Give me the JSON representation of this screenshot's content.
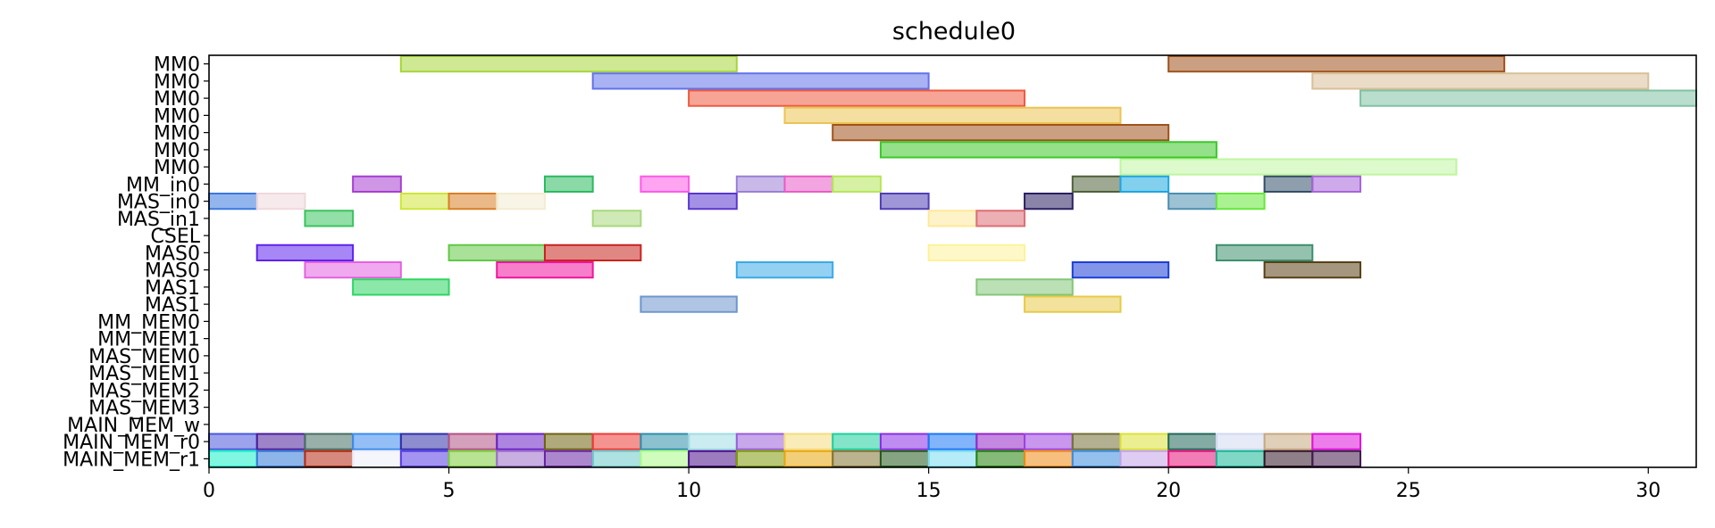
{
  "chart_data": {
    "type": "gantt",
    "title": "schedule0",
    "xlabel": "",
    "ylabel": "",
    "xlim": [
      0,
      31
    ],
    "xticks": [
      0,
      5,
      10,
      15,
      20,
      25,
      30
    ],
    "grid": false,
    "rows": [
      "MM0",
      "MM0",
      "MM0",
      "MM0",
      "MM0",
      "MM0",
      "MM0",
      "MM_in0",
      "MAS_in0",
      "MAS_in1",
      "CSEL",
      "MAS0",
      "MAS0",
      "MAS1",
      "MAS1",
      "MM_MEM0",
      "MM_MEM1",
      "MAS_MEM0",
      "MAS_MEM1",
      "MAS_MEM2",
      "MAS_MEM3",
      "MAIN_MEM_w",
      "MAIN_MEM_r0",
      "MAIN_MEM_r1"
    ],
    "tasks": [
      {
        "row": 0,
        "start": 4,
        "end": 11,
        "color": "#a5d63a"
      },
      {
        "row": 0,
        "start": 20,
        "end": 27,
        "color": "#a0521b"
      },
      {
        "row": 1,
        "start": 8,
        "end": 15,
        "color": "#6272ea"
      },
      {
        "row": 1,
        "start": 23,
        "end": 30,
        "color": "#d8bf98"
      },
      {
        "row": 2,
        "start": 10,
        "end": 17,
        "color": "#ee5a3f"
      },
      {
        "row": 2,
        "start": 24,
        "end": 31,
        "color": "#80c2a4"
      },
      {
        "row": 3,
        "start": 12,
        "end": 19,
        "color": "#ebc453"
      },
      {
        "row": 4,
        "start": 13,
        "end": 20,
        "color": "#a0521b"
      },
      {
        "row": 5,
        "start": 14,
        "end": 21,
        "color": "#3cc82a"
      },
      {
        "row": 6,
        "start": 19,
        "end": 26,
        "color": "#c0f5a0"
      },
      {
        "row": 7,
        "start": 3,
        "end": 4,
        "color": "#a63fcf"
      },
      {
        "row": 7,
        "start": 7,
        "end": 8,
        "color": "#2bba5e"
      },
      {
        "row": 7,
        "start": 9,
        "end": 10,
        "color": "#ff5ae6"
      },
      {
        "row": 7,
        "start": 11,
        "end": 12,
        "color": "#9a7fd6"
      },
      {
        "row": 7,
        "start": 12,
        "end": 13,
        "color": "#e85bc7"
      },
      {
        "row": 7,
        "start": 13,
        "end": 14,
        "color": "#b5e65a"
      },
      {
        "row": 7,
        "start": 18,
        "end": 19,
        "color": "#4f6138"
      },
      {
        "row": 7,
        "start": 19,
        "end": 20,
        "color": "#1ca7e0"
      },
      {
        "row": 7,
        "start": 22,
        "end": 23,
        "color": "#324f68"
      },
      {
        "row": 7,
        "start": 23,
        "end": 24,
        "color": "#a764d8"
      },
      {
        "row": 8,
        "start": 0,
        "end": 1,
        "color": "#3a78e0"
      },
      {
        "row": 8,
        "start": 1,
        "end": 2,
        "color": "#f0d8dc"
      },
      {
        "row": 8,
        "start": 4,
        "end": 5,
        "color": "#cfe53a"
      },
      {
        "row": 8,
        "start": 5,
        "end": 6,
        "color": "#d87f25"
      },
      {
        "row": 8,
        "start": 6,
        "end": 7,
        "color": "#f3ecd2"
      },
      {
        "row": 8,
        "start": 10,
        "end": 11,
        "color": "#5a37cf"
      },
      {
        "row": 8,
        "start": 14,
        "end": 15,
        "color": "#4f3fb5"
      },
      {
        "row": 8,
        "start": 17,
        "end": 18,
        "color": "#2a1f62"
      },
      {
        "row": 8,
        "start": 20,
        "end": 21,
        "color": "#4b8fb0"
      },
      {
        "row": 8,
        "start": 21,
        "end": 22,
        "color": "#66e83a"
      },
      {
        "row": 9,
        "start": 2,
        "end": 3,
        "color": "#38c45e"
      },
      {
        "row": 9,
        "start": 8,
        "end": 9,
        "color": "#a8d87c"
      },
      {
        "row": 9,
        "start": 15,
        "end": 16,
        "color": "#fde89a"
      },
      {
        "row": 9,
        "start": 16,
        "end": 17,
        "color": "#dc6e76"
      },
      {
        "row": 11,
        "start": 1,
        "end": 3,
        "color": "#5f22ec"
      },
      {
        "row": 11,
        "start": 5,
        "end": 7,
        "color": "#62c845"
      },
      {
        "row": 11,
        "start": 7,
        "end": 9,
        "color": "#c8241d"
      },
      {
        "row": 11,
        "start": 15,
        "end": 17,
        "color": "#fdf29b"
      },
      {
        "row": 11,
        "start": 21,
        "end": 23,
        "color": "#3c8f6e"
      },
      {
        "row": 12,
        "start": 2,
        "end": 4,
        "color": "#e462e2"
      },
      {
        "row": 12,
        "start": 6,
        "end": 8,
        "color": "#f0149e"
      },
      {
        "row": 12,
        "start": 11,
        "end": 13,
        "color": "#3aaae6"
      },
      {
        "row": 12,
        "start": 18,
        "end": 20,
        "color": "#1c3ed6"
      },
      {
        "row": 12,
        "start": 22,
        "end": 24,
        "color": "#594016"
      },
      {
        "row": 13,
        "start": 3,
        "end": 5,
        "color": "#2dd660"
      },
      {
        "row": 13,
        "start": 16,
        "end": 18,
        "color": "#84c678"
      },
      {
        "row": 14,
        "start": 9,
        "end": 11,
        "color": "#6e96cc"
      },
      {
        "row": 14,
        "start": 17,
        "end": 19,
        "color": "#e8ca48"
      },
      {
        "row": 22,
        "start": 0,
        "end": 1,
        "color": "#4a58dc"
      },
      {
        "row": 22,
        "start": 1,
        "end": 2,
        "color": "#4c1d9a"
      },
      {
        "row": 22,
        "start": 2,
        "end": 3,
        "color": "#466e64"
      },
      {
        "row": 22,
        "start": 3,
        "end": 4,
        "color": "#3d8bee"
      },
      {
        "row": 22,
        "start": 4,
        "end": 5,
        "color": "#3030a8"
      },
      {
        "row": 22,
        "start": 5,
        "end": 6,
        "color": "#b05284"
      },
      {
        "row": 22,
        "start": 6,
        "end": 7,
        "color": "#6a20c6"
      },
      {
        "row": 22,
        "start": 7,
        "end": 8,
        "color": "#6f6210"
      },
      {
        "row": 22,
        "start": 8,
        "end": 9,
        "color": "#ec3a36"
      },
      {
        "row": 22,
        "start": 9,
        "end": 10,
        "color": "#2e8eaa"
      },
      {
        "row": 22,
        "start": 10,
        "end": 11,
        "color": "#a0dce4"
      },
      {
        "row": 22,
        "start": 11,
        "end": 12,
        "color": "#9a5ed8"
      },
      {
        "row": 22,
        "start": 12,
        "end": 13,
        "color": "#f5dc7e"
      },
      {
        "row": 22,
        "start": 13,
        "end": 14,
        "color": "#1cd09e"
      },
      {
        "row": 22,
        "start": 14,
        "end": 15,
        "color": "#8a2ee6"
      },
      {
        "row": 22,
        "start": 15,
        "end": 16,
        "color": "#1a76f6"
      },
      {
        "row": 22,
        "start": 16,
        "end": 17,
        "color": "#9426c8"
      },
      {
        "row": 22,
        "start": 17,
        "end": 18,
        "color": "#9c42e0"
      },
      {
        "row": 22,
        "start": 18,
        "end": 19,
        "color": "#737036"
      },
      {
        "row": 22,
        "start": 19,
        "end": 20,
        "color": "#dce236"
      },
      {
        "row": 22,
        "start": 20,
        "end": 21,
        "color": "#20685a"
      },
      {
        "row": 22,
        "start": 21,
        "end": 22,
        "color": "#d2daf0"
      },
      {
        "row": 22,
        "start": 22,
        "end": 23,
        "color": "#c6a880"
      },
      {
        "row": 22,
        "start": 23,
        "end": 24,
        "color": "#de12da"
      },
      {
        "row": 23,
        "start": 0,
        "end": 1,
        "color": "#17f0c8"
      },
      {
        "row": 23,
        "start": 1,
        "end": 2,
        "color": "#3278d8"
      },
      {
        "row": 23,
        "start": 2,
        "end": 3,
        "color": "#b42810"
      },
      {
        "row": 23,
        "start": 3,
        "end": 4,
        "color": "#eceef8"
      },
      {
        "row": 23,
        "start": 4,
        "end": 5,
        "color": "#5a3ce6"
      },
      {
        "row": 23,
        "start": 5,
        "end": 6,
        "color": "#7ccc3a"
      },
      {
        "row": 23,
        "start": 6,
        "end": 7,
        "color": "#9a6cc8"
      },
      {
        "row": 23,
        "start": 7,
        "end": 8,
        "color": "#6a24a4"
      },
      {
        "row": 23,
        "start": 8,
        "end": 9,
        "color": "#6cc8c8"
      },
      {
        "row": 23,
        "start": 9,
        "end": 10,
        "color": "#aafc88"
      },
      {
        "row": 23,
        "start": 10,
        "end": 11,
        "color": "#4a0e8a"
      },
      {
        "row": 23,
        "start": 11,
        "end": 12,
        "color": "#7e9a0a"
      },
      {
        "row": 23,
        "start": 12,
        "end": 13,
        "color": "#e8a60a"
      },
      {
        "row": 23,
        "start": 13,
        "end": 14,
        "color": "#847234"
      },
      {
        "row": 23,
        "start": 14,
        "end": 15,
        "color": "#245a1c"
      },
      {
        "row": 23,
        "start": 15,
        "end": 16,
        "color": "#78dcf0"
      },
      {
        "row": 23,
        "start": 16,
        "end": 17,
        "color": "#20820a"
      },
      {
        "row": 23,
        "start": 17,
        "end": 18,
        "color": "#f08a14"
      },
      {
        "row": 23,
        "start": 18,
        "end": 19,
        "color": "#3c8cde"
      },
      {
        "row": 23,
        "start": 19,
        "end": 20,
        "color": "#c4a2e8"
      },
      {
        "row": 23,
        "start": 20,
        "end": 21,
        "color": "#e8127a"
      },
      {
        "row": 23,
        "start": 21,
        "end": 22,
        "color": "#18b696"
      },
      {
        "row": 23,
        "start": 22,
        "end": 23,
        "color": "#321628"
      },
      {
        "row": 23,
        "start": 23,
        "end": 24,
        "color": "#421a4c"
      }
    ]
  }
}
